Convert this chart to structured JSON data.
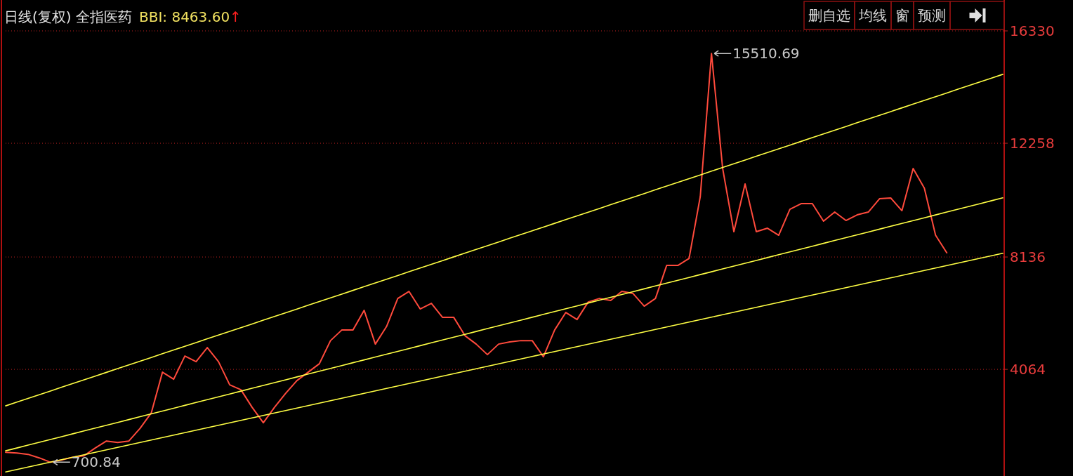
{
  "chart_data": {
    "type": "line",
    "title": "日线(复权) 全指医药",
    "subtitle": "BBI: 8463.60↑",
    "categories": [
      null,
      null,
      null,
      null,
      null,
      null,
      null,
      null,
      null,
      null,
      null,
      null,
      null,
      null,
      null,
      null,
      null,
      null,
      null,
      null,
      null,
      null,
      null,
      null,
      null,
      null,
      null,
      null,
      null,
      null,
      null,
      null,
      null,
      null,
      null,
      null,
      null,
      null,
      null,
      null,
      null,
      null,
      null,
      null,
      null,
      null,
      null,
      null,
      null,
      null,
      null,
      null,
      null,
      null,
      null,
      null,
      null,
      null,
      null,
      null,
      null,
      null,
      null,
      null,
      null,
      null,
      null,
      null,
      null,
      null,
      null,
      null,
      null,
      null,
      null,
      null,
      null,
      null,
      null,
      null,
      null,
      null,
      null,
      null,
      null,
      null,
      null,
      null,
      null,
      null
    ],
    "ylim": [
      200,
      16330
    ],
    "yticks": [
      4064,
      8136,
      12258,
      16330
    ],
    "grid": "y",
    "tick_labels": "y",
    "series": [
      {
        "color": "#ff4a3c",
        "values": [
          1061,
          1035,
          985,
          857,
          700.84,
          781,
          883,
          934,
          1214,
          1468,
          1417,
          1468,
          1926,
          2486,
          3962,
          3708,
          4548,
          4344,
          4853,
          4344,
          3504,
          3326,
          2690,
          2130,
          2690,
          3199,
          3657,
          3962,
          4268,
          5107,
          5489,
          5489,
          6202,
          4980,
          5617,
          6634,
          6889,
          6253,
          6456,
          5947,
          5947,
          5286,
          4980,
          4598,
          4980,
          5057,
          5107,
          5107,
          4522,
          5489,
          6126,
          5871,
          6507,
          6634,
          6558,
          6889,
          6813,
          6355,
          6634,
          7831,
          7831,
          8085,
          10325,
          15510.69,
          11343,
          9052,
          10783,
          9052,
          9180,
          8925,
          9867,
          10070,
          10070,
          9434,
          9765,
          9459,
          9663,
          9765,
          10248,
          10274,
          9816,
          11343,
          10630,
          8925,
          8289,
          null,
          null,
          null,
          null,
          null
        ]
      },
      {
        "color": "#ffff44",
        "values": [
          2741,
          2876,
          3011,
          3146,
          3281,
          3416,
          3551,
          3686,
          3821,
          3956,
          4091,
          4226,
          4361,
          4496,
          4631,
          4766,
          4901,
          5036,
          5171,
          5306,
          5441,
          5576,
          5711,
          5846,
          5981,
          6116,
          6251,
          6386,
          6521,
          6656,
          6791,
          6926,
          7061,
          7196,
          7331,
          7466,
          7601,
          7736,
          7871,
          8006,
          8141,
          8276,
          8411,
          8546,
          8681,
          8816,
          8951,
          9086,
          9221,
          9356,
          9491,
          9626,
          9761,
          9896,
          10031,
          10166,
          10301,
          10436,
          10571,
          10706,
          10841,
          10976,
          11111,
          11246,
          11381,
          11516,
          11651,
          11786,
          11921,
          12056,
          12191,
          12326,
          12461,
          12596,
          12731,
          12866,
          13001,
          13136,
          13271,
          13406,
          13541,
          13676,
          13811,
          13946,
          14081,
          14216,
          14351,
          14486,
          14621,
          14756
        ]
      },
      {
        "color": "#ffff44",
        "values": [
          1112,
          1215,
          1318,
          1421,
          1524,
          1627,
          1730,
          1833,
          1936,
          2039,
          2142,
          2245,
          2348,
          2451,
          2554,
          2657,
          2760,
          2863,
          2966,
          3069,
          3172,
          3275,
          3378,
          3481,
          3584,
          3687,
          3790,
          3893,
          3996,
          4099,
          4202,
          4305,
          4408,
          4511,
          4614,
          4717,
          4820,
          4923,
          5026,
          5129,
          5232,
          5335,
          5438,
          5541,
          5644,
          5747,
          5850,
          5953,
          6056,
          6159,
          6262,
          6365,
          6468,
          6571,
          6674,
          6777,
          6880,
          6983,
          7086,
          7189,
          7292,
          7395,
          7498,
          7601,
          7704,
          7807,
          7910,
          8013,
          8116,
          8219,
          8322,
          8425,
          8528,
          8631,
          8734,
          8837,
          8940,
          9043,
          9146,
          9249,
          9352,
          9455,
          9558,
          9661,
          9764,
          9867,
          9970,
          10073,
          10176,
          10279
        ]
      },
      {
        "color": "#ffff44",
        "values": [
          348,
          437,
          526,
          615,
          704,
          793,
          882,
          971,
          1060,
          1149,
          1238,
          1327,
          1416,
          1505,
          1594,
          1683,
          1772,
          1861,
          1950,
          2039,
          2128,
          2217,
          2306,
          2395,
          2484,
          2573,
          2662,
          2751,
          2840,
          2929,
          3018,
          3107,
          3196,
          3285,
          3374,
          3463,
          3552,
          3641,
          3730,
          3819,
          3908,
          3997,
          4086,
          4175,
          4264,
          4353,
          4442,
          4531,
          4620,
          4709,
          4798,
          4887,
          4976,
          5065,
          5154,
          5243,
          5332,
          5421,
          5510,
          5599,
          5688,
          5777,
          5866,
          5955,
          6044,
          6133,
          6222,
          6311,
          6400,
          6489,
          6578,
          6667,
          6756,
          6845,
          6934,
          7023,
          7112,
          7201,
          7290,
          7379,
          7468,
          7557,
          7646,
          7735,
          7824,
          7913,
          8002,
          8091,
          8180,
          8269
        ]
      }
    ],
    "annotations": [
      "15510.69",
      "700.84",
      "删自选",
      "均线",
      "窗",
      "预测"
    ]
  }
}
